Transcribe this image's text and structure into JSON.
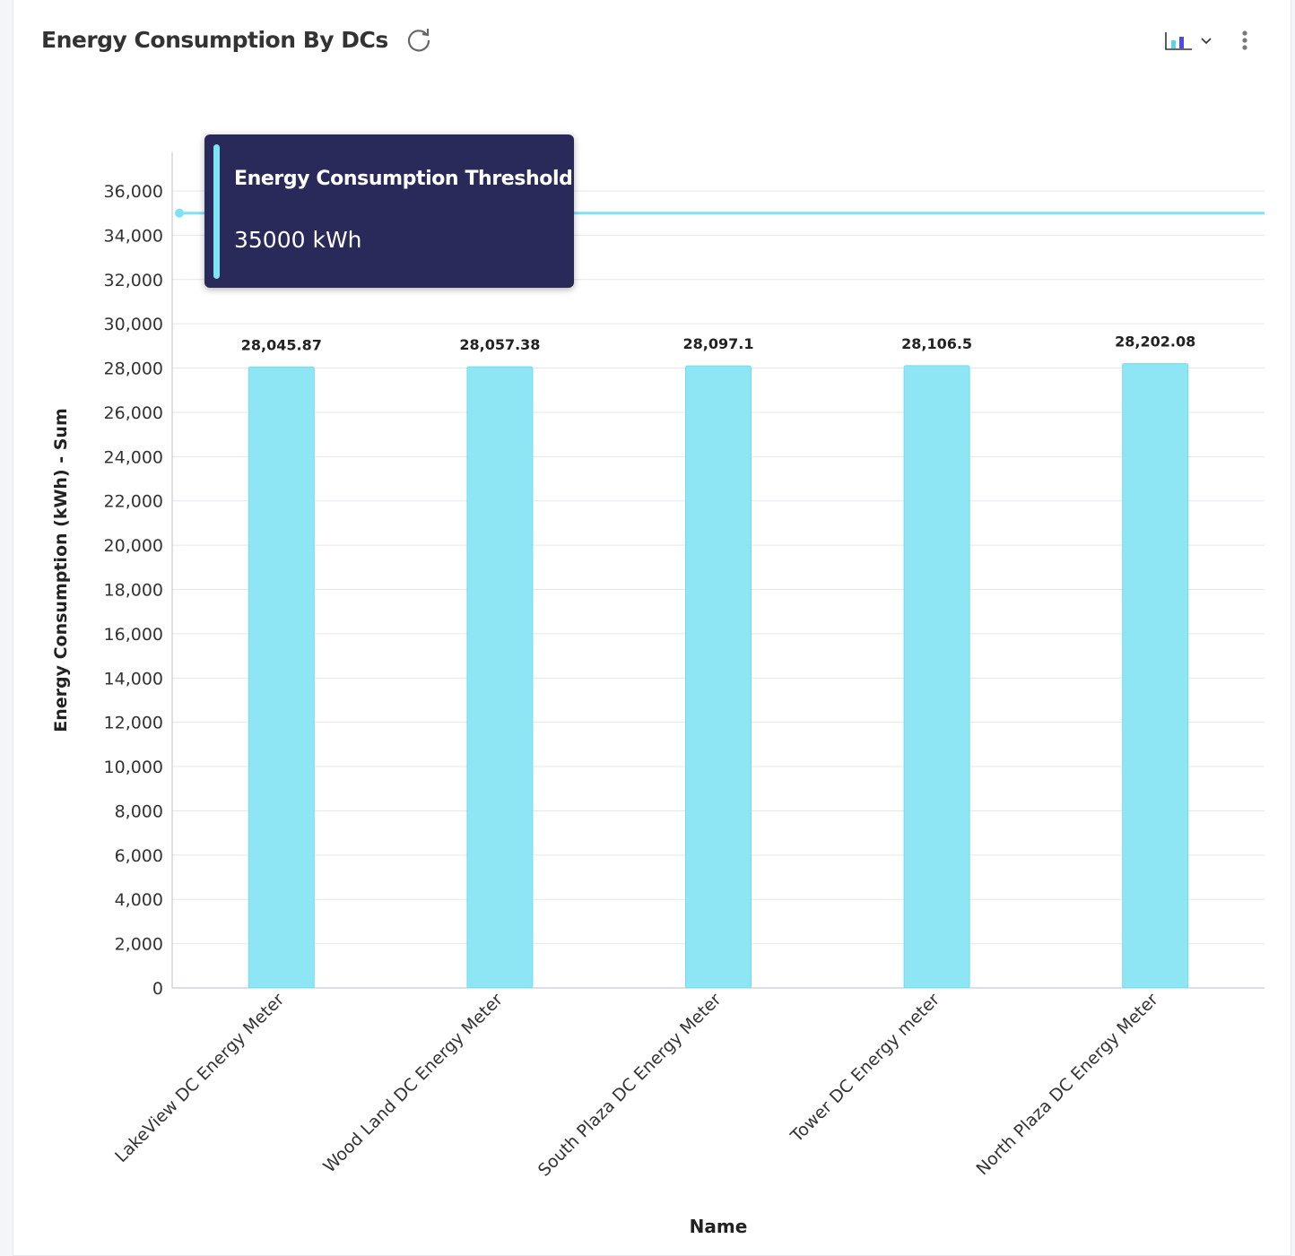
{
  "header": {
    "title": "Energy Consumption By DCs",
    "refresh_icon": "refresh-icon",
    "chart_type_icon": "bar-chart-icon",
    "chevron_icon": "chevron-down-icon",
    "more_icon": "more-vertical-icon"
  },
  "tooltip": {
    "title": "Energy Consumption Threshold",
    "value": "35000 kWh"
  },
  "colors": {
    "bar": "#8ee6f5",
    "bar_stroke": "#6fdcef",
    "threshold": "#7fe3f3",
    "tooltip_bg": "#2a2a5a"
  },
  "chart_data": {
    "type": "bar",
    "title": "Energy Consumption By DCs",
    "xlabel": "Name",
    "ylabel": "Energy Consumption (kWh) - Sum",
    "categories": [
      "LakeView DC Energy Meter",
      "Wood Land DC Energy Meter",
      "South Plaza DC Energy Meter",
      "Tower DC Energy meter",
      "North Plaza DC Energy Meter"
    ],
    "values": [
      28045.87,
      28057.38,
      28097.1,
      28106.5,
      28202.08
    ],
    "data_labels": [
      "28,045.87",
      "28,057.38",
      "28,097.1",
      "28,106.5",
      "28,202.08"
    ],
    "ylim": [
      0,
      36000
    ],
    "yticks": [
      0,
      2000,
      4000,
      6000,
      8000,
      10000,
      12000,
      14000,
      16000,
      18000,
      20000,
      22000,
      24000,
      26000,
      28000,
      30000,
      32000,
      34000,
      36000
    ],
    "threshold": {
      "name": "Energy Consumption Threshold",
      "value": 35000
    },
    "grid": true,
    "legend": "none"
  }
}
